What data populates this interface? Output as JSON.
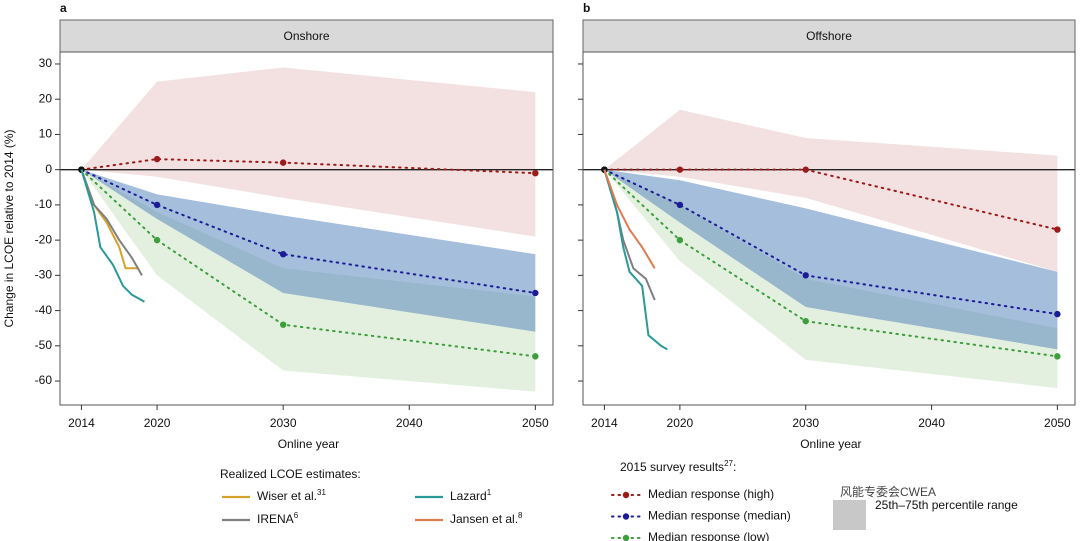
{
  "chart_data": [
    {
      "type": "line",
      "panel_label": "a",
      "title": "Onshore",
      "ylabel": "Change in LCOE relative to 2014 (%)",
      "xlabel": "Online year",
      "xlim": [
        2012.3,
        2051.4
      ],
      "xticks": [
        2014,
        2020,
        2030,
        2040,
        2050
      ],
      "ylim": [
        -66.8,
        33.4
      ],
      "yticks": [
        -60,
        -50,
        -40,
        -30,
        -20,
        -10,
        0,
        10,
        20,
        30
      ],
      "ytick_labels": true,
      "hline": 0,
      "bands": [
        {
          "color": "#f3e1e1",
          "x": [
            2014,
            2020,
            2030,
            2050
          ],
          "lower": [
            0,
            -2,
            -8,
            -19
          ],
          "upper": [
            0,
            25,
            29,
            22
          ]
        },
        {
          "color": "rgba(205,227,196,0.55)",
          "x": [
            2014,
            2020,
            2030,
            2050
          ],
          "lower": [
            0,
            -30,
            -57,
            -63
          ],
          "upper": [
            0,
            -12,
            -28,
            -36
          ]
        },
        {
          "color": "rgba(75,125,185,0.5)",
          "x": [
            2014,
            2020,
            2030,
            2050
          ],
          "lower": [
            0,
            -14,
            -35,
            -46
          ],
          "upper": [
            0,
            -7,
            -13,
            -24
          ]
        }
      ],
      "series": [
        {
          "name": "Median response (high)",
          "color": "#9b1b1b",
          "style": "dotted",
          "x": [
            2014,
            2020,
            2030,
            2050
          ],
          "values": [
            0,
            3,
            2,
            -1
          ]
        },
        {
          "name": "Median response (median)",
          "color": "#1c1c96",
          "style": "dotted",
          "x": [
            2014,
            2020,
            2030,
            2050
          ],
          "values": [
            0,
            -10,
            -24,
            -35
          ]
        },
        {
          "name": "Median response (low)",
          "color": "#3c9e3c",
          "style": "dotted",
          "x": [
            2014,
            2020,
            2030,
            2050
          ],
          "values": [
            0,
            -20,
            -44,
            -53
          ]
        },
        {
          "name": "Wiser et al.",
          "ref": "31",
          "color": "#d4a22a",
          "style": "solid",
          "x": [
            2014,
            2015,
            2016,
            2017,
            2017.5,
            2018.5
          ],
          "values": [
            0,
            -10,
            -15,
            -22,
            -28,
            -28
          ]
        },
        {
          "name": "IRENA",
          "ref": "6",
          "color": "#7f7f7f",
          "style": "solid",
          "x": [
            2014,
            2015,
            2016,
            2017,
            2018,
            2018.8
          ],
          "values": [
            0,
            -10,
            -14,
            -20,
            -25,
            -30
          ]
        },
        {
          "name": "Lazard",
          "ref": "1",
          "color": "#2a9a98",
          "style": "solid",
          "x": [
            2014,
            2015,
            2015.5,
            2016.5,
            2017.3,
            2018,
            2019
          ],
          "values": [
            0,
            -12,
            -22,
            -27,
            -33,
            -35.5,
            -37.5
          ]
        }
      ]
    },
    {
      "type": "line",
      "panel_label": "b",
      "title": "Offshore",
      "xlabel": "Online year",
      "xlim": [
        2012.3,
        2051.4
      ],
      "xticks": [
        2014,
        2020,
        2030,
        2040,
        2050
      ],
      "ylim": [
        -66.8,
        33.4
      ],
      "yticks": [
        -60,
        -50,
        -40,
        -30,
        -20,
        -10,
        0,
        10,
        20,
        30
      ],
      "ytick_labels": false,
      "hline": 0,
      "bands": [
        {
          "color": "#f3e1e1",
          "x": [
            2014,
            2020,
            2030,
            2050
          ],
          "lower": [
            0,
            -2,
            -8,
            -29
          ],
          "upper": [
            0,
            17,
            9,
            4
          ]
        },
        {
          "color": "rgba(205,227,196,0.55)",
          "x": [
            2014,
            2020,
            2030,
            2050
          ],
          "lower": [
            0,
            -26,
            -54,
            -62
          ],
          "upper": [
            0,
            -10,
            -31,
            -45
          ]
        },
        {
          "color": "rgba(75,125,185,0.5)",
          "x": [
            2014,
            2020,
            2030,
            2050
          ],
          "lower": [
            0,
            -15,
            -39,
            -51
          ],
          "upper": [
            0,
            -3,
            -11,
            -29
          ]
        }
      ],
      "series": [
        {
          "name": "Median response (high)",
          "color": "#9b1b1b",
          "style": "dotted",
          "x": [
            2014,
            2020,
            2030,
            2050
          ],
          "values": [
            0,
            0,
            0,
            -17
          ]
        },
        {
          "name": "Median response (median)",
          "color": "#1c1c96",
          "style": "dotted",
          "x": [
            2014,
            2020,
            2030,
            2050
          ],
          "values": [
            0,
            -10,
            -30,
            -41
          ]
        },
        {
          "name": "Median response (low)",
          "color": "#3c9e3c",
          "style": "dotted",
          "x": [
            2014,
            2020,
            2030,
            2050
          ],
          "values": [
            0,
            -20,
            -43,
            -53
          ]
        },
        {
          "name": "IRENA",
          "ref": "6",
          "color": "#7f7f7f",
          "style": "solid",
          "x": [
            2014,
            2015,
            2015.5,
            2016.3,
            2017.3,
            2018
          ],
          "values": [
            0,
            -12,
            -20,
            -28,
            -31,
            -37
          ]
        },
        {
          "name": "Lazard",
          "ref": "1",
          "color": "#2a9a98",
          "style": "solid",
          "x": [
            2014,
            2015,
            2015.5,
            2016,
            2017,
            2017.5,
            2018.5,
            2019
          ],
          "values": [
            0,
            -12,
            -22,
            -29,
            -33,
            -47,
            -50,
            -51
          ]
        },
        {
          "name": "Jansen et al.",
          "ref": "8",
          "color": "#e07b50",
          "style": "solid",
          "x": [
            2014,
            2015,
            2016,
            2017,
            2018
          ],
          "values": [
            0,
            -10,
            -17,
            -22,
            -28
          ]
        }
      ]
    }
  ],
  "legend": {
    "realized_title": "Realized LCOE estimates:",
    "survey_title_parts": [
      "2015 survey results",
      "27",
      ":"
    ],
    "band_label": "25th–75th percentile range",
    "band_color": "#c8c8c8"
  },
  "watermark": "风能专委会CWEA"
}
